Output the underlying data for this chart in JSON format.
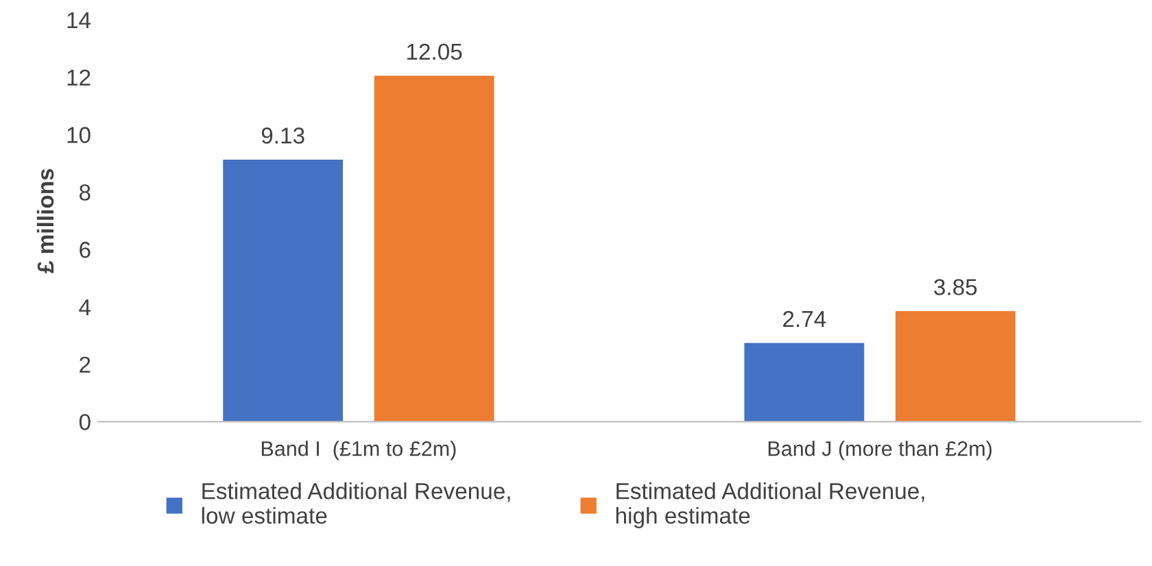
{
  "chart_data": {
    "type": "bar",
    "ylabel": "£ millions",
    "categories": [
      "Band I  (£1m to £2m)",
      "Band J (more than £2m)"
    ],
    "series": [
      {
        "name": "Estimated Additional Revenue,\nlow estimate",
        "color": "#4472c4",
        "values": [
          9.13,
          2.74
        ]
      },
      {
        "name": "Estimated Additional Revenue,\nhigh estimate",
        "color": "#ed7d31",
        "values": [
          12.05,
          3.85
        ]
      }
    ],
    "ylim": [
      0,
      14
    ],
    "yticks": [
      0,
      2,
      4,
      6,
      8,
      10,
      12,
      14
    ],
    "data_labels": true,
    "legend": "bottom",
    "grid": false
  }
}
